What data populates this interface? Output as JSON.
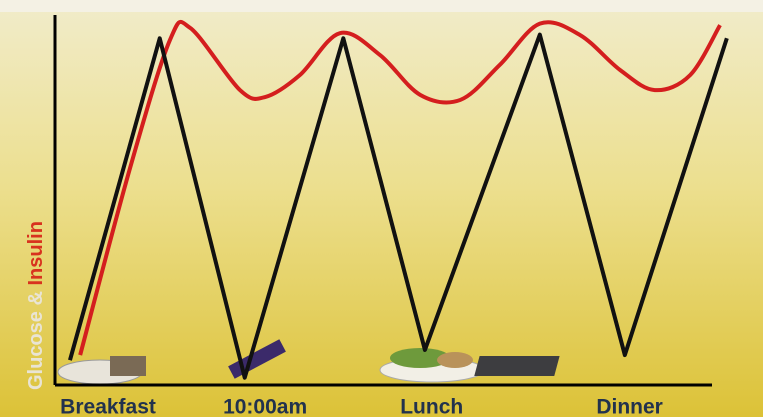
{
  "chart_data": {
    "type": "line",
    "y_label": [
      "Glucose & ",
      "Insulin"
    ],
    "y_label_colors": [
      "#e9e4d4",
      "#d8321e"
    ],
    "xlim": [
      0,
      100
    ],
    "ylim": [
      0,
      100
    ],
    "xticks": [
      {
        "value": 7.8,
        "label": "Breakfast"
      },
      {
        "value": 30.9,
        "label": "10:00am"
      },
      {
        "value": 55.4,
        "label": "Lunch"
      },
      {
        "value": 84.5,
        "label": "Dinner"
      }
    ],
    "series": [
      {
        "color": "#111111",
        "smooth": false,
        "x": [
          2.2,
          15.4,
          27.9,
          42.4,
          54.4,
          71.3,
          83.8,
          98.8
        ],
        "values": [
          6.8,
          95,
          2,
          95,
          9.6,
          96,
          8.2,
          95
        ]
      },
      {
        "color": "#d41e1e",
        "smooth": true,
        "x": [
          3.7,
          11.0,
          16.9,
          19.9,
          27.2,
          30.9,
          36.0,
          41.9,
          47.8,
          53.7,
          59.6,
          65.4,
          71.3,
          77.2,
          83.1,
          88.2,
          93.4,
          97.8
        ],
        "values": [
          8.2,
          59.2,
          94.5,
          97.8,
          80.8,
          78.9,
          84.9,
          96.4,
          90.4,
          79.5,
          78.1,
          87.7,
          99,
          95.9,
          86.3,
          80.8,
          84.9,
          98.6
        ]
      }
    ]
  }
}
